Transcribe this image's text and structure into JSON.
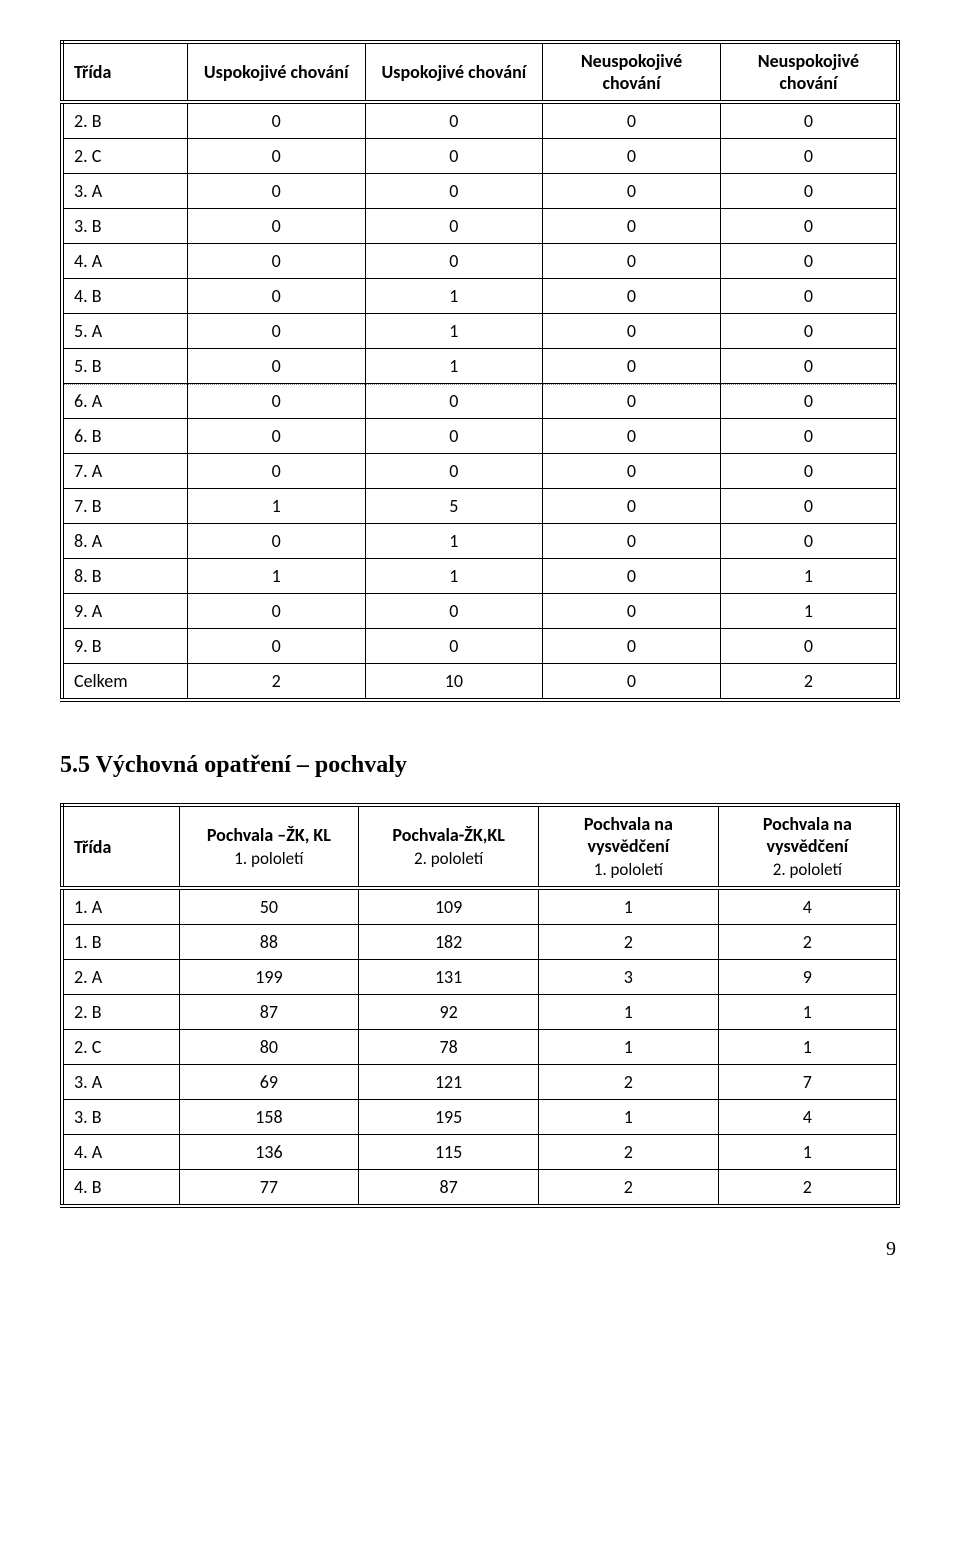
{
  "table1": {
    "columns": [
      "Třída",
      "Uspokojivé chování",
      "Uspokojivé chování",
      "Neuspokojivé chování",
      "Neuspokojivé chování"
    ],
    "rows": [
      [
        "2. B",
        "0",
        "0",
        "0",
        "0"
      ],
      [
        "2. C",
        "0",
        "0",
        "0",
        "0"
      ],
      [
        "3. A",
        "0",
        "0",
        "0",
        "0"
      ],
      [
        "3. B",
        "0",
        "0",
        "0",
        "0"
      ],
      [
        "4. A",
        "0",
        "0",
        "0",
        "0"
      ],
      [
        "4. B",
        "0",
        "1",
        "0",
        "0"
      ],
      [
        "5. A",
        "0",
        "1",
        "0",
        "0"
      ],
      [
        "5. B",
        "0",
        "1",
        "0",
        "0"
      ],
      [
        "6. A",
        "0",
        "0",
        "0",
        "0"
      ],
      [
        "6. B",
        "0",
        "0",
        "0",
        "0"
      ],
      [
        "7. A",
        "0",
        "0",
        "0",
        "0"
      ],
      [
        "7. B",
        "1",
        "5",
        "0",
        "0"
      ],
      [
        "8. A",
        "0",
        "1",
        "0",
        "0"
      ],
      [
        "8. B",
        "1",
        "1",
        "0",
        "1"
      ],
      [
        "9. A",
        "0",
        "0",
        "0",
        "1"
      ],
      [
        "9. B",
        "0",
        "0",
        "0",
        "0"
      ],
      [
        "Celkem",
        "2",
        "10",
        "0",
        "2"
      ]
    ],
    "col_widths": [
      "15%",
      "21.25%",
      "21.25%",
      "21.25%",
      "21.25%"
    ]
  },
  "section_title": "5.5   Výchovná opatření – pochvaly",
  "table2": {
    "columns_main": [
      "Třída",
      "Pochvala –ŽK, KL",
      "Pochvala-ŽK,KL",
      "Pochvala na vysvědčení",
      "Pochvala na vysvědčení"
    ],
    "columns_sub": [
      "",
      "1. pololetí",
      "2. pololetí",
      "1. pololetí",
      "2. pololetí"
    ],
    "rows": [
      [
        "1. A",
        "50",
        "109",
        "1",
        "4"
      ],
      [
        "1. B",
        "88",
        "182",
        "2",
        "2"
      ],
      [
        "2. A",
        "199",
        "131",
        "3",
        "9"
      ],
      [
        "2. B",
        "87",
        "92",
        "1",
        "1"
      ],
      [
        "2. C",
        "80",
        "78",
        "1",
        "1"
      ],
      [
        "3. A",
        "69",
        "121",
        "2",
        "7"
      ],
      [
        "3. B",
        "158",
        "195",
        "1",
        "4"
      ],
      [
        "4. A",
        "136",
        "115",
        "2",
        "1"
      ],
      [
        "4. B",
        "77",
        "87",
        "2",
        "2"
      ]
    ],
    "col_widths": [
      "14%",
      "21.5%",
      "21.5%",
      "21.5%",
      "21.5%"
    ]
  },
  "page_number": "9",
  "style": {
    "font_family": "Calibri, Arial, sans-serif",
    "section_font_family": "Georgia, Times New Roman, serif",
    "text_color": "#000000",
    "bg_color": "#ffffff",
    "border_color": "#000000",
    "cell_fontsize": 18,
    "header_fontweight": "bold",
    "section_fontsize": 24
  }
}
